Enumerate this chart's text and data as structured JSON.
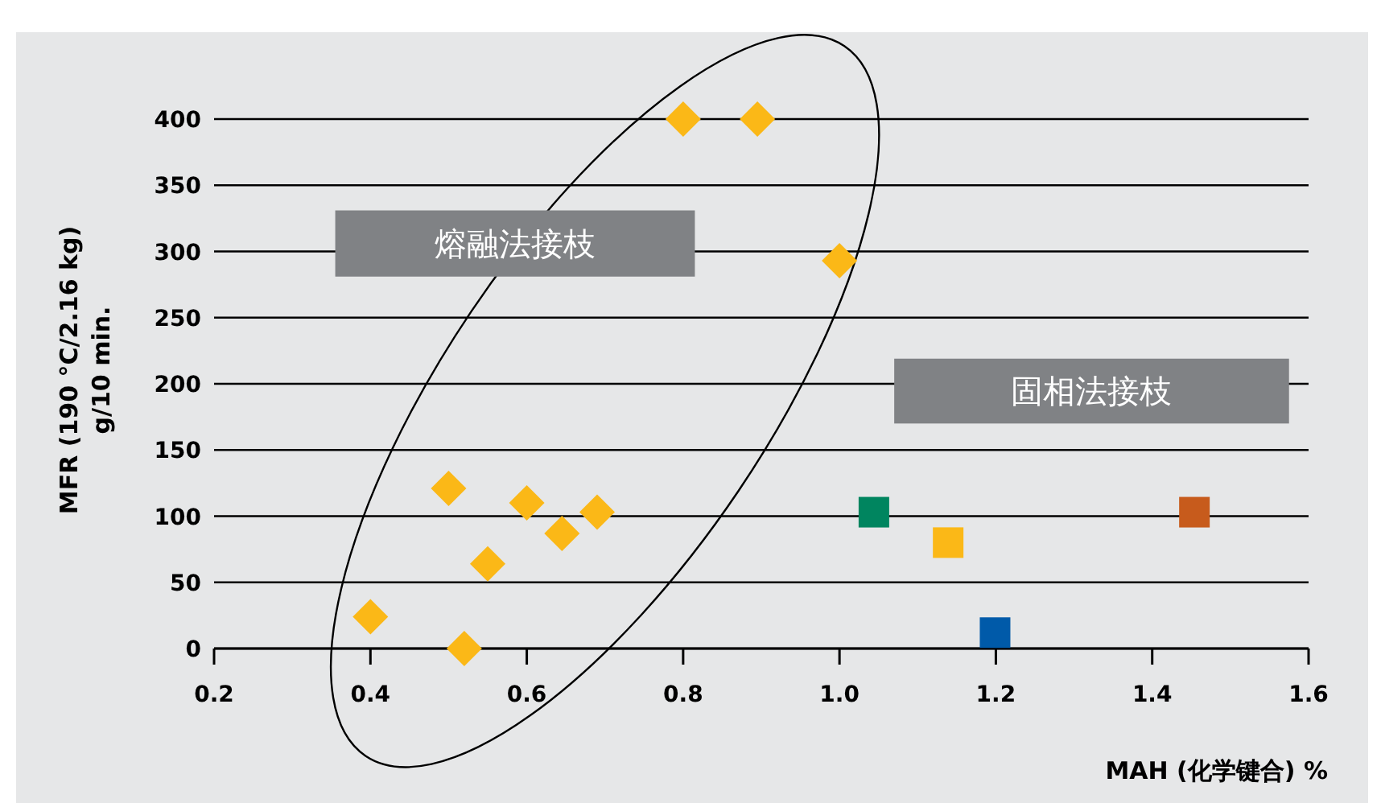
{
  "chart_data": {
    "type": "scatter",
    "xlabel": "MAH (化学键合) %",
    "ylabel": "MFR (190 °C/2.16 kg)\ng/10 min.",
    "xlim": [
      0.2,
      1.6
    ],
    "xticks": [
      0.2,
      0.4,
      0.6,
      0.8,
      {
        "value": 1,
        "label": "1.0"
      },
      1.2,
      1.4,
      1.6
    ],
    "ylim": [
      0,
      400
    ],
    "yticks": [
      0,
      50,
      100,
      150,
      200,
      250,
      300,
      350,
      400
    ],
    "grid": "y",
    "annotations": [
      "熔融法接枝",
      "固相法接枝"
    ],
    "series": [
      {
        "marker": "diamond",
        "color": "#fbb817",
        "x": [
          0.4,
          0.5,
          0.52,
          0.55,
          0.6,
          0.645,
          0.69,
          0.8,
          0.895,
          1.0
        ],
        "values": [
          24,
          121,
          0,
          64,
          110,
          87,
          103,
          400,
          400,
          293
        ]
      },
      {
        "marker": "square",
        "colors": [
          "#00855f",
          "#fbb817",
          "#005aa9",
          "#c75b1c"
        ],
        "x": [
          1.044,
          1.139,
          1.199,
          1.454
        ],
        "values": [
          103,
          80,
          12,
          103
        ]
      }
    ]
  }
}
